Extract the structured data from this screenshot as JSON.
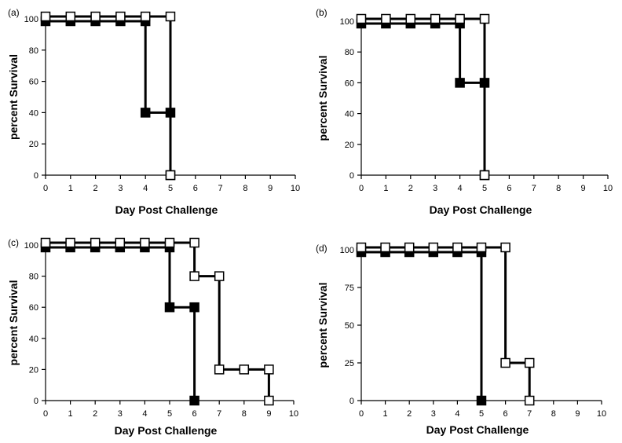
{
  "chart_data": [
    {
      "type": "line",
      "panel_label": "(a)",
      "xlabel": "Day Post Challenge",
      "ylabel": "percent Survival",
      "xlim": [
        0,
        10
      ],
      "ylim": [
        0,
        100
      ],
      "x_ticks": [
        0,
        1,
        2,
        3,
        4,
        5,
        6,
        7,
        8,
        9,
        10
      ],
      "y_ticks": [
        0,
        20,
        40,
        60,
        80,
        100
      ],
      "series": [
        {
          "name": "filled squares",
          "marker": "filled",
          "x": [
            0,
            1,
            2,
            3,
            4,
            4,
            5,
            5
          ],
          "y": [
            100,
            100,
            100,
            100,
            100,
            40,
            40,
            0
          ]
        },
        {
          "name": "open squares",
          "marker": "open",
          "x": [
            0,
            1,
            2,
            3,
            4,
            5,
            5
          ],
          "y": [
            100,
            100,
            100,
            100,
            100,
            100,
            0
          ]
        }
      ]
    },
    {
      "type": "line",
      "panel_label": "(b)",
      "xlabel": "Day Post Challenge",
      "ylabel": "percent Survival",
      "xlim": [
        0,
        10
      ],
      "ylim": [
        0,
        100
      ],
      "x_ticks": [
        0,
        1,
        2,
        3,
        4,
        5,
        6,
        7,
        8,
        9,
        10
      ],
      "y_ticks": [
        0,
        20,
        40,
        60,
        80,
        100
      ],
      "series": [
        {
          "name": "filled squares",
          "marker": "filled",
          "x": [
            0,
            1,
            2,
            3,
            4,
            4,
            5,
            5
          ],
          "y": [
            100,
            100,
            100,
            100,
            100,
            60,
            60,
            0
          ]
        },
        {
          "name": "open squares",
          "marker": "open",
          "x": [
            0,
            1,
            2,
            3,
            4,
            5,
            5
          ],
          "y": [
            100,
            100,
            100,
            100,
            100,
            100,
            0
          ]
        }
      ]
    },
    {
      "type": "line",
      "panel_label": "(c)",
      "xlabel": "Day Post Challenge",
      "ylabel": "percent Survival",
      "xlim": [
        0,
        10
      ],
      "ylim": [
        0,
        100
      ],
      "x_ticks": [
        0,
        1,
        2,
        3,
        4,
        5,
        6,
        7,
        8,
        9,
        10
      ],
      "y_ticks": [
        0,
        20,
        40,
        60,
        80,
        100
      ],
      "series": [
        {
          "name": "filled squares",
          "marker": "filled",
          "x": [
            0,
            1,
            2,
            3,
            4,
            5,
            5,
            6,
            6
          ],
          "y": [
            100,
            100,
            100,
            100,
            100,
            100,
            60,
            60,
            0
          ]
        },
        {
          "name": "open squares",
          "marker": "open",
          "x": [
            0,
            1,
            2,
            3,
            4,
            5,
            6,
            6,
            7,
            7,
            8,
            9,
            9
          ],
          "y": [
            100,
            100,
            100,
            100,
            100,
            100,
            100,
            80,
            80,
            20,
            20,
            20,
            0
          ]
        }
      ]
    },
    {
      "type": "line",
      "panel_label": "(d)",
      "xlabel": "Day Post Challenge",
      "ylabel": "percent Survival",
      "xlim": [
        0,
        10
      ],
      "ylim": [
        0,
        100
      ],
      "x_ticks": [
        0,
        1,
        2,
        3,
        4,
        5,
        6,
        7,
        8,
        9,
        10
      ],
      "y_ticks": [
        0,
        25,
        50,
        75,
        100
      ],
      "series": [
        {
          "name": "filled squares",
          "marker": "filled",
          "x": [
            0,
            1,
            2,
            3,
            4,
            5,
            5
          ],
          "y": [
            100,
            100,
            100,
            100,
            100,
            100,
            0
          ]
        },
        {
          "name": "open squares",
          "marker": "open",
          "x": [
            0,
            1,
            2,
            3,
            4,
            5,
            6,
            6,
            7,
            7
          ],
          "y": [
            100,
            100,
            100,
            100,
            100,
            100,
            100,
            25,
            25,
            0
          ]
        }
      ]
    }
  ]
}
